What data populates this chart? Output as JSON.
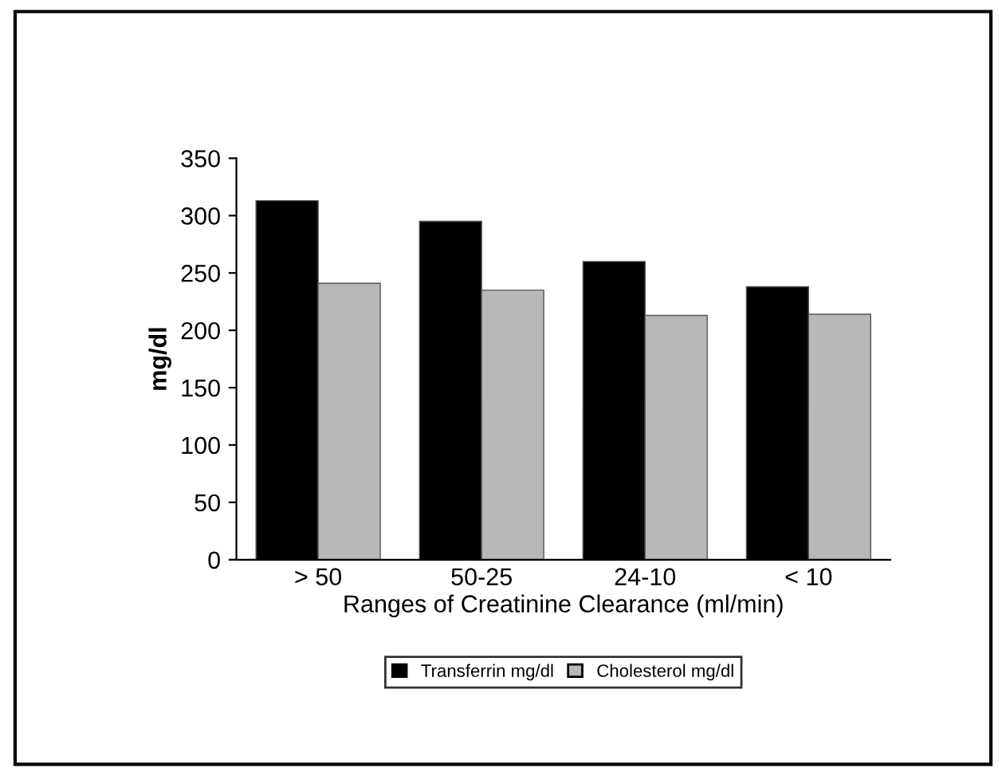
{
  "chart_data": {
    "type": "bar",
    "xlabel": "Ranges of Creatinine Clearance (ml/min)",
    "ylabel": "mg/dl",
    "categories": [
      "> 50",
      "50-25",
      "24-10",
      "< 10"
    ],
    "series": [
      {
        "name": "Transferrin mg/dl",
        "color": "#000000",
        "values": [
          313,
          295,
          260,
          238
        ]
      },
      {
        "name": "Cholesterol mg/dl",
        "color": "#b8b8b8",
        "values": [
          241,
          235,
          213,
          214
        ]
      }
    ],
    "ylim": [
      0,
      350
    ],
    "yticks": [
      0,
      50,
      100,
      150,
      200,
      250,
      300,
      350
    ],
    "grid": false,
    "legend": "bottom"
  }
}
